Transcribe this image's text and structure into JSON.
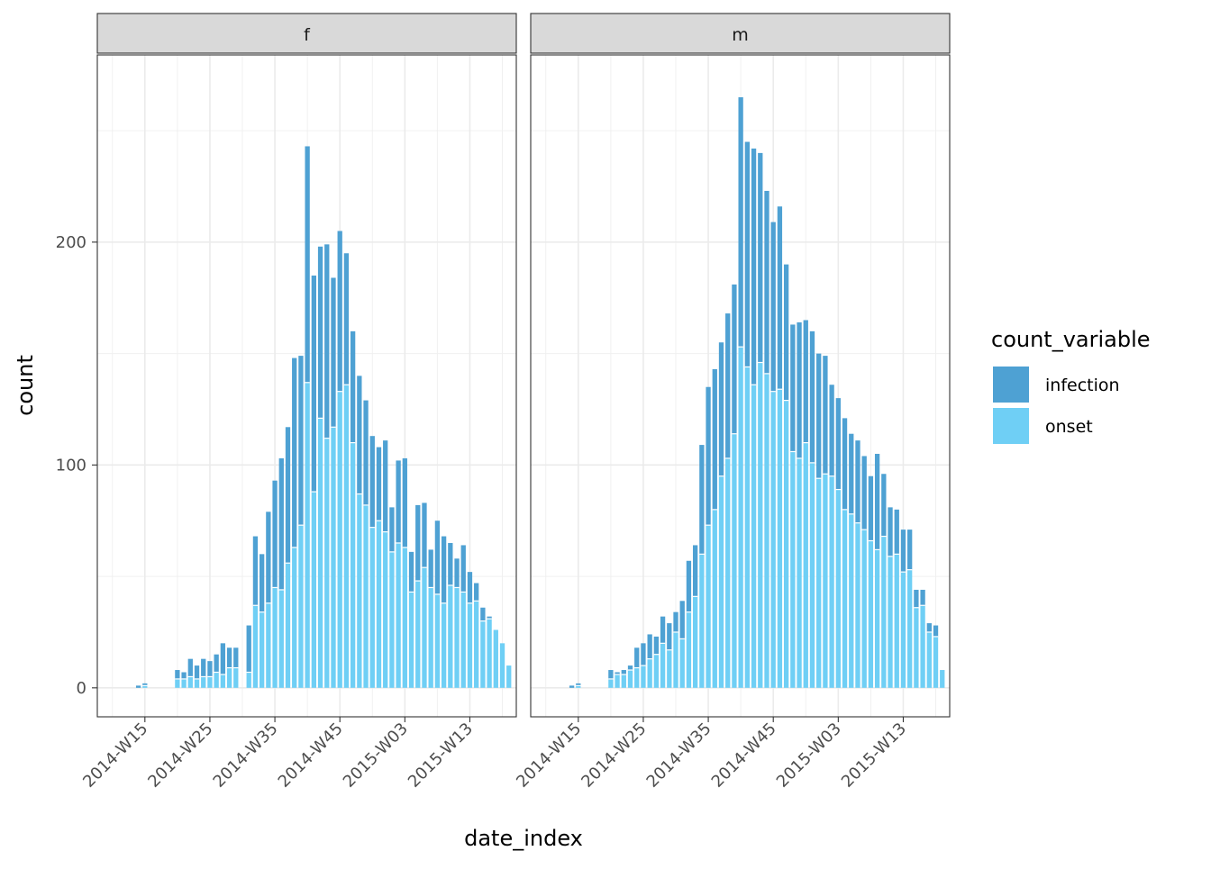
{
  "chart_data": {
    "type": "bar",
    "stacked": true,
    "xlabel": "date_index",
    "ylabel": "count",
    "x_ticks": [
      "2014-W15",
      "2014-W25",
      "2014-W35",
      "2014-W45",
      "2015-W03",
      "2015-W13"
    ],
    "y_ticks": [
      0,
      100,
      200
    ],
    "ylim": [
      -13,
      284
    ],
    "legend": {
      "title": "count_variable",
      "position": "right",
      "entries": [
        {
          "key": "infection",
          "label": "infection",
          "color": "#4ea1d3"
        },
        {
          "key": "onset",
          "label": "onset",
          "color": "#6fcff5"
        }
      ]
    },
    "weeks": [
      "2014-W14",
      "2014-W15",
      "2014-W16",
      "2014-W17",
      "2014-W18",
      "2014-W19",
      "2014-W20",
      "2014-W21",
      "2014-W22",
      "2014-W23",
      "2014-W24",
      "2014-W25",
      "2014-W26",
      "2014-W27",
      "2014-W28",
      "2014-W29",
      "2014-W30",
      "2014-W31",
      "2014-W32",
      "2014-W33",
      "2014-W34",
      "2014-W35",
      "2014-W36",
      "2014-W37",
      "2014-W38",
      "2014-W39",
      "2014-W40",
      "2014-W41",
      "2014-W42",
      "2014-W43",
      "2014-W44",
      "2014-W45",
      "2014-W46",
      "2014-W47",
      "2014-W48",
      "2014-W49",
      "2014-W50",
      "2014-W51",
      "2014-W52",
      "2015-W01",
      "2015-W02",
      "2015-W03",
      "2015-W04",
      "2015-W05",
      "2015-W06",
      "2015-W07",
      "2015-W08",
      "2015-W09",
      "2015-W10",
      "2015-W11",
      "2015-W12",
      "2015-W13",
      "2015-W14",
      "2015-W15",
      "2015-W16",
      "2015-W17",
      "2015-W18",
      "2015-W19"
    ],
    "panels": [
      {
        "label": "f",
        "infection": [
          1,
          1,
          0,
          0,
          0,
          0,
          4,
          3,
          8,
          6,
          8,
          7,
          8,
          14,
          9,
          9,
          0,
          21,
          31,
          26,
          41,
          48,
          59,
          61,
          85,
          76,
          106,
          97,
          77,
          87,
          67,
          72,
          59,
          50,
          53,
          47,
          41,
          33,
          41,
          20,
          37,
          40,
          18,
          34,
          29,
          17,
          33,
          30,
          19,
          13,
          21,
          14,
          8,
          6,
          1,
          0,
          0,
          0
        ],
        "onset": [
          0,
          1,
          0,
          0,
          0,
          0,
          4,
          4,
          5,
          4,
          5,
          5,
          7,
          6,
          9,
          9,
          0,
          7,
          37,
          34,
          38,
          45,
          44,
          56,
          63,
          73,
          137,
          88,
          121,
          112,
          117,
          133,
          136,
          110,
          87,
          82,
          72,
          75,
          70,
          61,
          65,
          63,
          43,
          48,
          54,
          45,
          42,
          38,
          46,
          45,
          43,
          38,
          39,
          30,
          31,
          26,
          20,
          10
        ]
      },
      {
        "label": "m",
        "infection": [
          1,
          1,
          0,
          0,
          0,
          0,
          4,
          1,
          2,
          2,
          9,
          10,
          11,
          8,
          12,
          12,
          9,
          17,
          23,
          23,
          49,
          62,
          63,
          60,
          65,
          67,
          112,
          101,
          106,
          94,
          82,
          76,
          82,
          61,
          57,
          61,
          55,
          59,
          56,
          53,
          41,
          41,
          41,
          36,
          37,
          33,
          29,
          43,
          28,
          22,
          20,
          19,
          18,
          8,
          7,
          4,
          5,
          0
        ],
        "onset": [
          0,
          1,
          0,
          0,
          0,
          0,
          4,
          6,
          6,
          8,
          9,
          10,
          13,
          15,
          20,
          17,
          25,
          22,
          34,
          41,
          60,
          73,
          80,
          95,
          103,
          114,
          153,
          144,
          136,
          146,
          141,
          133,
          134,
          129,
          106,
          103,
          110,
          101,
          94,
          96,
          95,
          89,
          80,
          78,
          74,
          71,
          66,
          62,
          68,
          59,
          60,
          52,
          53,
          36,
          37,
          25,
          23,
          8
        ]
      }
    ]
  }
}
